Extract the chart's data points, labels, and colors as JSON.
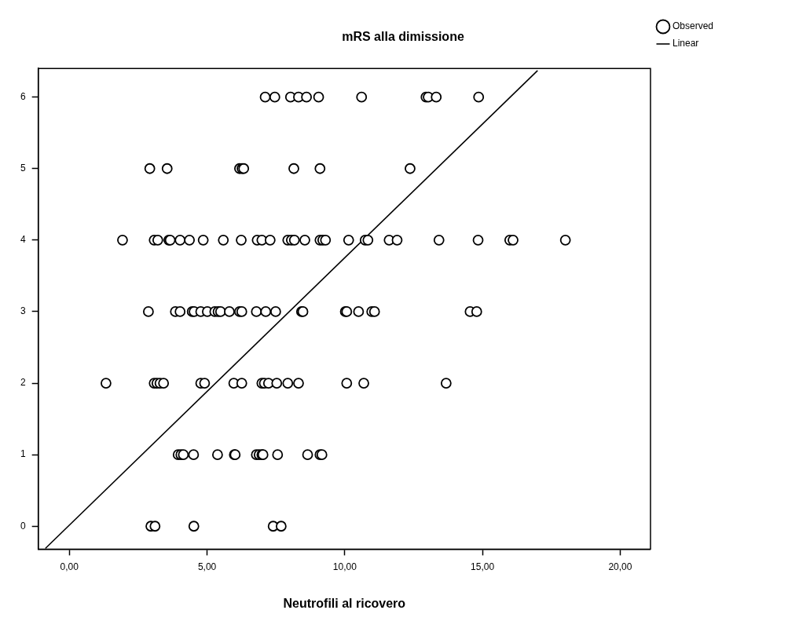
{
  "chart_data": {
    "type": "scatter",
    "title": "mRS alla dimissione",
    "xlabel": "Neutrofili al ricovero",
    "xlim": [
      -1.13,
      21.1
    ],
    "xticks": [
      {
        "value": 0,
        "label": "0,00"
      },
      {
        "value": 5,
        "label": "5,00"
      },
      {
        "value": 10,
        "label": "10,00"
      },
      {
        "value": 15,
        "label": "15,00"
      },
      {
        "value": 20,
        "label": "20,00"
      }
    ],
    "ylim": [
      -0.32,
      6.4
    ],
    "yticks": [
      0,
      1,
      2,
      3,
      4,
      5,
      6
    ],
    "grid": false,
    "legend": "top right",
    "series": [
      {
        "name": "Observed",
        "color": "#000000",
        "x": [
          7.11,
          7.46,
          8.03,
          8.32,
          8.61,
          9.05,
          10.61,
          12.95,
          13.03,
          13.32,
          14.86,
          2.92,
          3.55,
          6.18,
          6.27,
          6.33,
          8.15,
          9.1,
          12.37,
          1.93,
          3.08,
          3.21,
          3.61,
          3.66,
          4.02,
          4.36,
          4.86,
          5.59,
          6.24,
          6.82,
          6.99,
          7.29,
          7.93,
          8.06,
          8.17,
          8.55,
          9.1,
          9.2,
          9.3,
          10.14,
          10.74,
          10.84,
          11.61,
          11.9,
          13.42,
          14.84,
          15.99,
          16.11,
          18.01,
          2.87,
          3.85,
          4.02,
          4.46,
          4.53,
          4.77,
          5.01,
          5.28,
          5.4,
          5.49,
          5.81,
          6.18,
          6.26,
          6.79,
          7.13,
          7.49,
          8.43,
          8.48,
          10.02,
          10.07,
          10.5,
          10.98,
          11.08,
          14.55,
          14.79,
          1.33,
          3.08,
          3.18,
          3.29,
          3.42,
          4.77,
          4.91,
          5.97,
          6.26,
          6.99,
          7.08,
          7.23,
          7.53,
          7.93,
          8.32,
          10.07,
          10.69,
          13.68,
          3.95,
          4.05,
          4.14,
          4.51,
          5.38,
          5.99,
          6.02,
          6.79,
          6.89,
          6.99,
          7.03,
          7.56,
          8.65,
          9.1,
          9.17,
          2.96,
          3.11,
          4.52,
          7.4,
          7.69
        ],
        "marker": "circle",
        "values": [
          6,
          6,
          6,
          6,
          6,
          6,
          6,
          6,
          6,
          6,
          6,
          5,
          5,
          5,
          5,
          5,
          5,
          5,
          5,
          4,
          4,
          4,
          4,
          4,
          4,
          4,
          4,
          4,
          4,
          4,
          4,
          4,
          4,
          4,
          4,
          4,
          4,
          4,
          4,
          4,
          4,
          4,
          4,
          4,
          4,
          4,
          4,
          4,
          4,
          3,
          3,
          3,
          3,
          3,
          3,
          3,
          3,
          3,
          3,
          3,
          3,
          3,
          3,
          3,
          3,
          3,
          3,
          3,
          3,
          3,
          3,
          3,
          3,
          3,
          2,
          2,
          2,
          2,
          2,
          2,
          2,
          2,
          2,
          2,
          2,
          2,
          2,
          2,
          2,
          2,
          2,
          2,
          1,
          1,
          1,
          1,
          1,
          1,
          1,
          1,
          1,
          1,
          1,
          1,
          1,
          1,
          1,
          0,
          0,
          0,
          0,
          0
        ]
      },
      {
        "name": "Linear",
        "type": "line",
        "color": "#000000",
        "line_style": "solid",
        "x": [
          -0.87,
          17.0
        ],
        "values": [
          -0.31,
          6.37
        ]
      }
    ]
  }
}
